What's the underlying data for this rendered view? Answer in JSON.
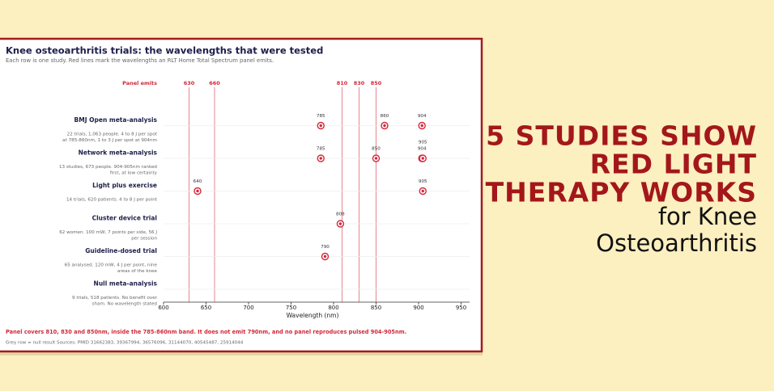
{
  "headline": {
    "lines": [
      "5 STUDIES SHOW",
      "RED LIGHT",
      "THERAPY WORKS"
    ],
    "sublines": [
      "for Knee",
      "Osteoarthritis"
    ]
  },
  "chart_data": {
    "type": "dot",
    "title": "Knee osteoarthritis trials: the wavelengths that were tested",
    "subtitle": "Each row is one study. Red lines mark the wavelengths an RLT Home Total Spectrum panel emits.",
    "panel_label": "Panel emits",
    "panel_wavelengths": [
      630,
      660,
      810,
      830,
      850
    ],
    "color": "#d3283a",
    "rows": [
      {
        "name": "BMJ Open meta-analysis",
        "note": [
          "22 trials, 1,063 people. 4 to 8 J per spot",
          "at 785-860nm, 1 to 3 J per spot at 904nm"
        ],
        "values": [
          785,
          860,
          904
        ]
      },
      {
        "name": "Network meta-analysis",
        "note": [
          "13 studies, 673 people. 904-905nm ranked",
          "first, at low certainty"
        ],
        "values": [
          785,
          850,
          904,
          905
        ]
      },
      {
        "name": "Light plus exercise",
        "note": [
          "14 trials, 620 patients. 4 to 8 J per point"
        ],
        "values": [
          640,
          905
        ]
      },
      {
        "name": "Cluster device trial",
        "note": [
          "62 women. 100 mW, 7 points per side, 56 J",
          "per session"
        ],
        "values": [
          808
        ]
      },
      {
        "name": "Guideline-dosed trial",
        "note": [
          "65 analysed. 120 mW, 4 J per point, nine",
          "areas of the knee"
        ],
        "values": [
          790
        ]
      },
      {
        "name": "Null meta-analysis",
        "note": [
          "9 trials, 518 patients. No benefit over",
          "sham. No wavelength stated"
        ],
        "values": []
      }
    ],
    "xlabel": "Wavelength (nm)",
    "xlim": [
      600,
      960
    ],
    "xticks": [
      600,
      650,
      700,
      750,
      800,
      850,
      900,
      950
    ],
    "footnote": "Panel covers 810, 830 and 850nm, inside the 785-860nm band. It does not emit 790nm, and no panel reproduces pulsed 904-905nm.",
    "source": "Grey row = null result  Sources: PMID 31662383, 39367994, 36576096, 31144070, 40545487, 25914044"
  }
}
